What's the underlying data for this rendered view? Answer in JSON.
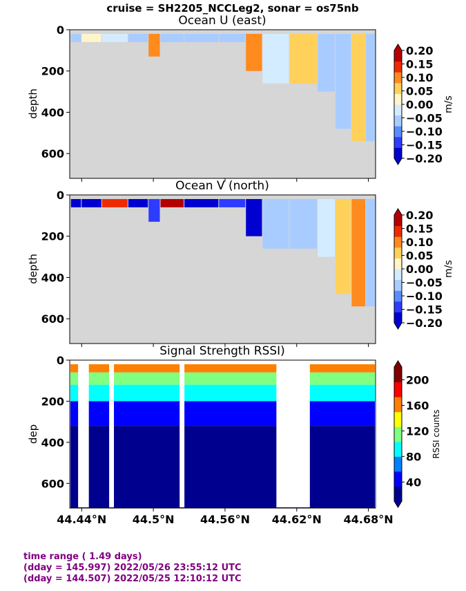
{
  "suptitle": "cruise = SH2205_NCCLeg2,  sonar = os75nb",
  "chart_data": [
    {
      "type": "heatmap",
      "title": "Ocean U (east)",
      "ylabel": "depth",
      "yticks": [
        "0",
        "200",
        "400",
        "600"
      ],
      "ylim": [
        720,
        0
      ],
      "xlim": [
        44.43,
        44.686
      ],
      "colorbar": {
        "label": "m/s",
        "ticks": [
          "0.20",
          "0.15",
          "0.10",
          "0.05",
          "0.00",
          "−0.05",
          "−0.10",
          "−0.15",
          "−0.20"
        ],
        "range": [
          -0.2,
          0.2
        ],
        "extend": "both",
        "colors": [
          "#0000d0",
          "#2d3cff",
          "#5a8cff",
          "#a8ccff",
          "#d4ecff",
          "#fff5c8",
          "#ffd15a",
          "#ff8a1e",
          "#ef2a00",
          "#b40000"
        ]
      },
      "profiles": [
        {
          "x": 44.432,
          "bottom": 60,
          "value": -0.05
        },
        {
          "x": 44.448,
          "bottom": 60,
          "value": 0.0
        },
        {
          "x": 44.466,
          "bottom": 60,
          "value": -0.02
        },
        {
          "x": 44.492,
          "bottom": 60,
          "value": -0.04
        },
        {
          "x": 44.5,
          "bottom": 130,
          "value": 0.12
        },
        {
          "x": 44.512,
          "bottom": 60,
          "value": -0.06
        },
        {
          "x": 44.54,
          "bottom": 60,
          "value": -0.05
        },
        {
          "x": 44.57,
          "bottom": 60,
          "value": -0.04
        },
        {
          "x": 44.585,
          "bottom": 200,
          "value": 0.08
        },
        {
          "x": 44.598,
          "bottom": 260,
          "value": -0.03
        },
        {
          "x": 44.63,
          "bottom": 260,
          "value": 0.05
        },
        {
          "x": 44.645,
          "bottom": 300,
          "value": -0.06
        },
        {
          "x": 44.66,
          "bottom": 480,
          "value": -0.08
        },
        {
          "x": 44.672,
          "bottom": 540,
          "value": 0.07
        },
        {
          "x": 44.684,
          "bottom": 540,
          "value": -0.05
        }
      ]
    },
    {
      "type": "heatmap",
      "title": "Ocean V (north)",
      "ylabel": "depth",
      "yticks": [
        "0",
        "200",
        "400",
        "600"
      ],
      "ylim": [
        720,
        0
      ],
      "xlim": [
        44.43,
        44.686
      ],
      "colorbar": {
        "label": "m/s",
        "ticks": [
          "0.20",
          "0.15",
          "0.10",
          "0.05",
          "0.00",
          "−0.05",
          "−0.10",
          "−0.15",
          "−0.20"
        ],
        "range": [
          -0.2,
          0.2
        ],
        "extend": "both",
        "colors": [
          "#0000d0",
          "#2d3cff",
          "#5a8cff",
          "#a8ccff",
          "#d4ecff",
          "#fff5c8",
          "#ffd15a",
          "#ff8a1e",
          "#ef2a00",
          "#b40000"
        ]
      },
      "profiles": [
        {
          "x": 44.432,
          "bottom": 60,
          "value": -0.2
        },
        {
          "x": 44.448,
          "bottom": 60,
          "value": -0.18
        },
        {
          "x": 44.466,
          "bottom": 60,
          "value": 0.15
        },
        {
          "x": 44.492,
          "bottom": 60,
          "value": -0.2
        },
        {
          "x": 44.5,
          "bottom": 130,
          "value": -0.15
        },
        {
          "x": 44.512,
          "bottom": 60,
          "value": 0.2
        },
        {
          "x": 44.54,
          "bottom": 60,
          "value": -0.2
        },
        {
          "x": 44.57,
          "bottom": 60,
          "value": -0.15
        },
        {
          "x": 44.585,
          "bottom": 200,
          "value": -0.2
        },
        {
          "x": 44.598,
          "bottom": 260,
          "value": -0.05
        },
        {
          "x": 44.63,
          "bottom": 260,
          "value": -0.08
        },
        {
          "x": 44.645,
          "bottom": 300,
          "value": -0.03
        },
        {
          "x": 44.66,
          "bottom": 480,
          "value": 0.06
        },
        {
          "x": 44.672,
          "bottom": 540,
          "value": 0.1
        },
        {
          "x": 44.684,
          "bottom": 540,
          "value": -0.05
        }
      ]
    },
    {
      "type": "heatmap",
      "title": "Signal Strength RSSI)",
      "ylabel": "dep",
      "yticks": [
        "0",
        "200",
        "400",
        "600"
      ],
      "ylim": [
        720,
        0
      ],
      "xlim": [
        44.43,
        44.686
      ],
      "xticks": [
        "44.44°N",
        "44.5°N",
        "44.56°N",
        "44.62°N",
        "44.68°N"
      ],
      "xtick_values": [
        44.44,
        44.5,
        44.56,
        44.62,
        44.68
      ],
      "colorbar": {
        "label": "RSSI counts",
        "ticks": [
          "200",
          "160",
          "120",
          "80",
          "40"
        ],
        "tick_values": [
          200,
          160,
          120,
          80,
          40
        ],
        "range": [
          10,
          220
        ],
        "extend": "both",
        "colors": [
          "#00008f",
          "#0000ff",
          "#0080ff",
          "#00ffff",
          "#80ff80",
          "#ffff00",
          "#ff8000",
          "#ff0000",
          "#800000"
        ]
      },
      "bands": [
        {
          "depth": [
            20,
            60
          ],
          "value": 170
        },
        {
          "depth": [
            60,
            120
          ],
          "value": 120
        },
        {
          "depth": [
            120,
            200
          ],
          "value": 85
        },
        {
          "depth": [
            200,
            320
          ],
          "value": 55
        },
        {
          "depth": [
            320,
            720
          ],
          "value": 28
        }
      ],
      "data_gaps_x": [
        [
          44.437,
          44.446
        ],
        [
          44.463,
          44.467
        ],
        [
          44.522,
          44.526
        ],
        [
          44.603,
          44.631
        ]
      ]
    }
  ],
  "footer": {
    "line1": "time range ( 1.49 days)",
    "line2": "(dday = 145.997) 2022/05/26 23:55:12 UTC",
    "line3": "(dday = 144.507) 2022/05/25 12:10:12 UTC"
  }
}
